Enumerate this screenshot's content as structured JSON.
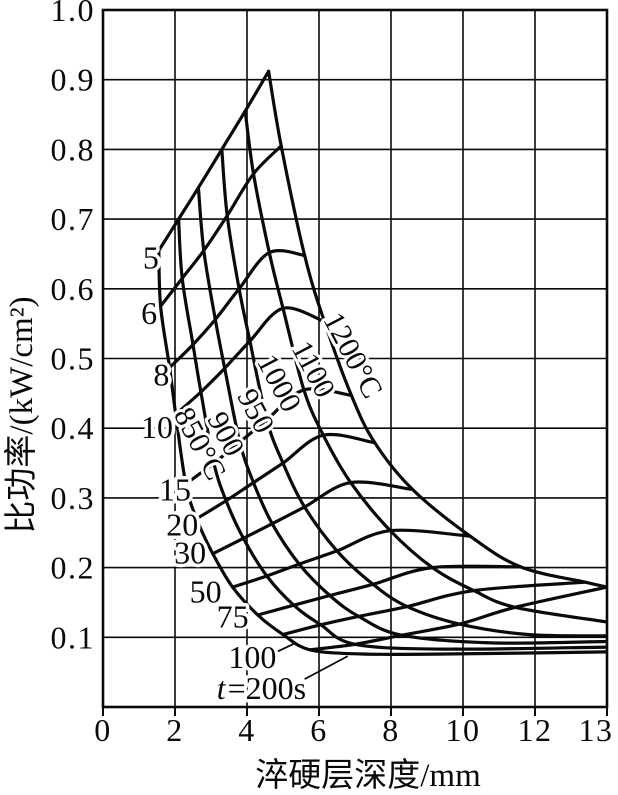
{
  "figure": {
    "background": "#ffffff",
    "ink": "#0a0a0a",
    "description": "Induction hardening chart: specific power vs hardened layer depth, mesh of heating-temperature curves crossed by heating-time curves"
  },
  "chart_data": {
    "type": "line",
    "title": "",
    "xlabel": "淬硬层深度/mm",
    "ylabel": "比功率/(kW/cm²)",
    "xlim": [
      0,
      13
    ],
    "ylim": [
      0,
      1.0
    ],
    "grid": true,
    "x_ticks": [
      0,
      2,
      4,
      6,
      8,
      10,
      12,
      13
    ],
    "x_tick_labels": [
      "0",
      "2",
      "4",
      "6",
      "8",
      "10",
      "12",
      "13"
    ],
    "x_axis_note": "ticks drawn at equal pixel spacing; final 12→13 interval spans the same width as the 2-unit intervals",
    "y_tick_labels": [
      "1.0",
      "0.9",
      "0.8",
      "0.7",
      "0.6",
      "0.5",
      "0.4",
      "0.3",
      "0.2",
      "0.1"
    ],
    "times_s": [
      5,
      6,
      8,
      10,
      15,
      20,
      30,
      50,
      75,
      100,
      200
    ],
    "temperature_curves": [
      {
        "label": "850°C",
        "points": [
          [
            1.55,
            0.655
          ],
          [
            1.6,
            0.575
          ],
          [
            1.85,
            0.487
          ],
          [
            2.02,
            0.42
          ],
          [
            2.3,
            0.32
          ],
          [
            2.6,
            0.27
          ],
          [
            3.05,
            0.22
          ],
          [
            3.6,
            0.172
          ],
          [
            4.3,
            0.132
          ],
          [
            5.0,
            0.104
          ],
          [
            5.75,
            0.082
          ],
          [
            7.2,
            0.076
          ],
          [
            9.5,
            0.076
          ],
          [
            13,
            0.079
          ]
        ]
      },
      {
        "label": "900",
        "points": [
          [
            2.1,
            0.7
          ],
          [
            2.2,
            0.615
          ],
          [
            2.5,
            0.52
          ],
          [
            2.72,
            0.452
          ],
          [
            3.08,
            0.35
          ],
          [
            3.42,
            0.296
          ],
          [
            3.9,
            0.242
          ],
          [
            4.55,
            0.188
          ],
          [
            5.3,
            0.146
          ],
          [
            6.05,
            0.118
          ],
          [
            7.0,
            0.09
          ],
          [
            9.5,
            0.083
          ],
          [
            13,
            0.086
          ]
        ]
      },
      {
        "label": "950",
        "points": [
          [
            2.65,
            0.745
          ],
          [
            2.8,
            0.655
          ],
          [
            3.12,
            0.556
          ],
          [
            3.38,
            0.486
          ],
          [
            3.8,
            0.38
          ],
          [
            4.18,
            0.322
          ],
          [
            4.7,
            0.263
          ],
          [
            5.45,
            0.205
          ],
          [
            6.3,
            0.16
          ],
          [
            7.1,
            0.13
          ],
          [
            8.3,
            0.103
          ],
          [
            10.8,
            0.092
          ],
          [
            13,
            0.094
          ]
        ]
      },
      {
        "label": "1000",
        "points": [
          [
            3.3,
            0.8
          ],
          [
            3.45,
            0.705
          ],
          [
            3.78,
            0.6
          ],
          [
            4.08,
            0.525
          ],
          [
            4.55,
            0.412
          ],
          [
            5.0,
            0.35
          ],
          [
            5.6,
            0.287
          ],
          [
            6.5,
            0.224
          ],
          [
            7.5,
            0.176
          ],
          [
            8.45,
            0.144
          ],
          [
            9.9,
            0.119
          ],
          [
            11.8,
            0.104
          ],
          [
            13,
            0.102
          ]
        ]
      },
      {
        "label": "1100",
        "points": [
          [
            3.95,
            0.855
          ],
          [
            4.18,
            0.765
          ],
          [
            4.62,
            0.652
          ],
          [
            5.0,
            0.572
          ],
          [
            5.58,
            0.455
          ],
          [
            6.12,
            0.39
          ],
          [
            6.88,
            0.322
          ],
          [
            7.98,
            0.253
          ],
          [
            9.15,
            0.2
          ],
          [
            10.3,
            0.167
          ],
          [
            11.45,
            0.143
          ],
          [
            13,
            0.122
          ]
        ]
      },
      {
        "label": "1200°C",
        "points": [
          [
            4.6,
            0.912
          ],
          [
            4.95,
            0.805
          ],
          [
            5.6,
            0.648
          ],
          [
            6.15,
            0.553
          ],
          [
            6.9,
            0.447
          ],
          [
            7.55,
            0.379
          ],
          [
            8.6,
            0.312
          ],
          [
            10.2,
            0.245
          ],
          [
            11.6,
            0.201
          ],
          [
            12.7,
            0.179
          ],
          [
            13,
            0.172
          ]
        ]
      }
    ],
    "time_curves": [
      {
        "label": "5",
        "points": [
          [
            1.55,
            0.655
          ],
          [
            2.1,
            0.7
          ],
          [
            2.65,
            0.745
          ],
          [
            3.3,
            0.8
          ],
          [
            3.95,
            0.855
          ],
          [
            4.6,
            0.912
          ]
        ]
      },
      {
        "label": "6",
        "points": [
          [
            1.6,
            0.575
          ],
          [
            2.2,
            0.615
          ],
          [
            2.8,
            0.655
          ],
          [
            3.45,
            0.705
          ],
          [
            4.18,
            0.765
          ],
          [
            4.95,
            0.805
          ]
        ]
      },
      {
        "label": "8",
        "points": [
          [
            1.85,
            0.487
          ],
          [
            2.5,
            0.52
          ],
          [
            3.12,
            0.556
          ],
          [
            3.78,
            0.6
          ],
          [
            4.62,
            0.652
          ],
          [
            5.6,
            0.648
          ]
        ]
      },
      {
        "label": "10",
        "points": [
          [
            2.02,
            0.42
          ],
          [
            2.72,
            0.452
          ],
          [
            3.38,
            0.486
          ],
          [
            4.08,
            0.525
          ],
          [
            5.0,
            0.572
          ],
          [
            6.15,
            0.553
          ]
        ]
      },
      {
        "label": "15",
        "points": [
          [
            2.3,
            0.32
          ],
          [
            3.08,
            0.35
          ],
          [
            3.8,
            0.38
          ],
          [
            4.55,
            0.412
          ],
          [
            5.58,
            0.455
          ],
          [
            6.9,
            0.447
          ]
        ]
      },
      {
        "label": "20",
        "points": [
          [
            2.6,
            0.27
          ],
          [
            3.42,
            0.296
          ],
          [
            4.18,
            0.322
          ],
          [
            5.0,
            0.35
          ],
          [
            6.12,
            0.39
          ],
          [
            7.55,
            0.379
          ]
        ]
      },
      {
        "label": "30",
        "points": [
          [
            3.05,
            0.22
          ],
          [
            3.9,
            0.242
          ],
          [
            4.7,
            0.263
          ],
          [
            5.6,
            0.287
          ],
          [
            6.88,
            0.322
          ],
          [
            8.6,
            0.312
          ]
        ]
      },
      {
        "label": "50",
        "points": [
          [
            3.6,
            0.172
          ],
          [
            4.55,
            0.188
          ],
          [
            5.45,
            0.205
          ],
          [
            6.5,
            0.224
          ],
          [
            7.98,
            0.253
          ],
          [
            10.2,
            0.245
          ]
        ]
      },
      {
        "label": "75",
        "points": [
          [
            4.3,
            0.132
          ],
          [
            5.3,
            0.146
          ],
          [
            6.3,
            0.16
          ],
          [
            7.5,
            0.176
          ],
          [
            9.15,
            0.2
          ],
          [
            11.6,
            0.201
          ]
        ]
      },
      {
        "label": "100",
        "points": [
          [
            5.0,
            0.104
          ],
          [
            6.05,
            0.118
          ],
          [
            7.1,
            0.13
          ],
          [
            8.45,
            0.144
          ],
          [
            10.3,
            0.167
          ],
          [
            12.7,
            0.179
          ]
        ]
      },
      {
        "label": "t=200s",
        "points": [
          [
            5.75,
            0.082
          ],
          [
            7.0,
            0.09
          ],
          [
            8.3,
            0.103
          ],
          [
            9.9,
            0.119
          ],
          [
            11.45,
            0.143
          ],
          [
            13,
            0.172
          ]
        ]
      }
    ],
    "time_curve_labels": [
      {
        "text": "5",
        "x": 1.33,
        "y": 0.645
      },
      {
        "text": "6",
        "x": 1.28,
        "y": 0.565
      },
      {
        "text": "8",
        "x": 1.62,
        "y": 0.477
      },
      {
        "text": "10",
        "x": 1.5,
        "y": 0.402
      },
      {
        "text": "15",
        "x": 2.0,
        "y": 0.312
      },
      {
        "text": "20",
        "x": 2.2,
        "y": 0.262
      },
      {
        "text": "30",
        "x": 2.42,
        "y": 0.222
      },
      {
        "text": "50",
        "x": 2.85,
        "y": 0.166
      },
      {
        "text": "75",
        "x": 3.6,
        "y": 0.13
      },
      {
        "text": "100",
        "x": 4.15,
        "y": 0.072
      },
      {
        "text": "t=200s",
        "x": 4.4,
        "y": 0.027
      }
    ],
    "temperature_curve_labels": [
      {
        "text": "850°C",
        "x": 2.7,
        "y": 0.378,
        "rotate": 62
      },
      {
        "text": "900",
        "x": 3.42,
        "y": 0.392,
        "rotate": 62
      },
      {
        "text": "950",
        "x": 4.25,
        "y": 0.425,
        "rotate": 62
      },
      {
        "text": "1000",
        "x": 4.9,
        "y": 0.465,
        "rotate": 62
      },
      {
        "text": "1100",
        "x": 5.85,
        "y": 0.485,
        "rotate": 62
      },
      {
        "text": "1200°C",
        "x": 6.95,
        "y": 0.505,
        "rotate": 62
      }
    ],
    "leader_lines": [
      {
        "from": [
          4.78,
          0.078
        ],
        "to": [
          5.35,
          0.092
        ]
      },
      {
        "from": [
          5.6,
          0.04
        ],
        "to": [
          6.8,
          0.073
        ]
      }
    ]
  }
}
